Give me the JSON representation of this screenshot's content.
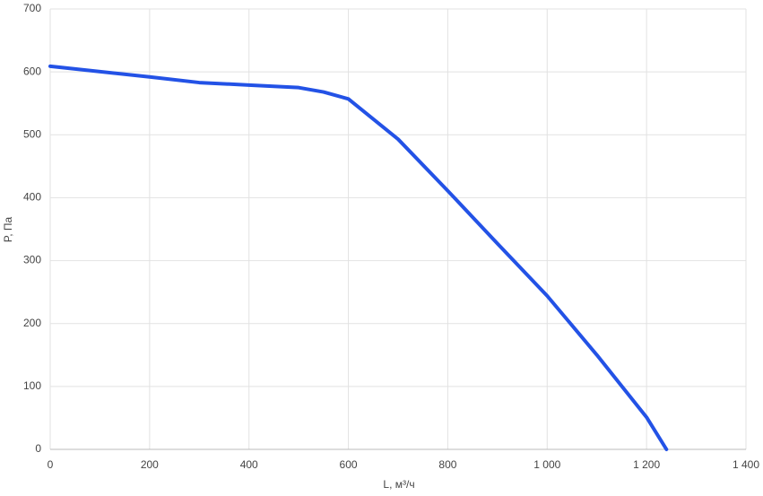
{
  "chart_data": {
    "type": "line",
    "x_label": "L, м³/ч",
    "y_label": "P, Па",
    "x": [
      0,
      200,
      300,
      400,
      500,
      550,
      600,
      700,
      800,
      900,
      1000,
      1100,
      1200,
      1240
    ],
    "series": [
      {
        "name": "P",
        "color": "#2352e6",
        "values": [
          609,
          592,
          583,
          579,
          575,
          568,
          557,
          493,
          411,
          327,
          244,
          150,
          51,
          0
        ]
      }
    ],
    "xlim": [
      0,
      1400
    ],
    "ylim": [
      0,
      700
    ],
    "xticks": [
      0,
      200,
      400,
      600,
      800,
      {
        "value": 1000,
        "label": "1 000"
      },
      {
        "value": 1200,
        "label": "1 200"
      },
      {
        "value": 1400,
        "label": "1 400"
      }
    ],
    "yticks": [
      0,
      100,
      200,
      300,
      400,
      500,
      600,
      700
    ],
    "grid": true
  }
}
